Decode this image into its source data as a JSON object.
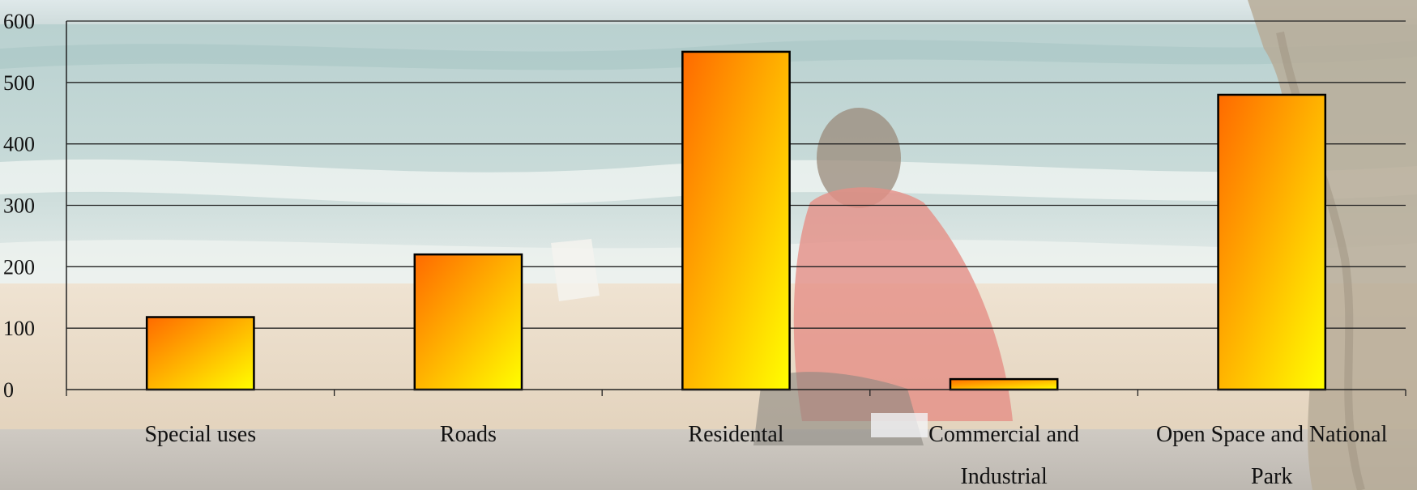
{
  "chart_data": {
    "type": "bar",
    "categories": [
      "Special uses",
      "Roads",
      "Residental",
      "Commercial and Industrial",
      "Open Space and National Park"
    ],
    "category_lines": [
      [
        "Special uses"
      ],
      [
        "Roads"
      ],
      [
        "Residental"
      ],
      [
        "Commercial and",
        "Industrial"
      ],
      [
        "Open Space and National",
        "Park"
      ]
    ],
    "values": [
      118,
      220,
      550,
      17,
      480
    ],
    "yticks": [
      0,
      100,
      200,
      300,
      400,
      500,
      600
    ],
    "ylim": [
      0,
      600
    ],
    "title": "",
    "xlabel": "",
    "ylabel": "",
    "grid": true,
    "legend": "none",
    "colors": {
      "bar_start": "#ff6a00",
      "bar_end": "#ffff00",
      "bar_stroke": "#000000",
      "grid": "#222222"
    }
  }
}
